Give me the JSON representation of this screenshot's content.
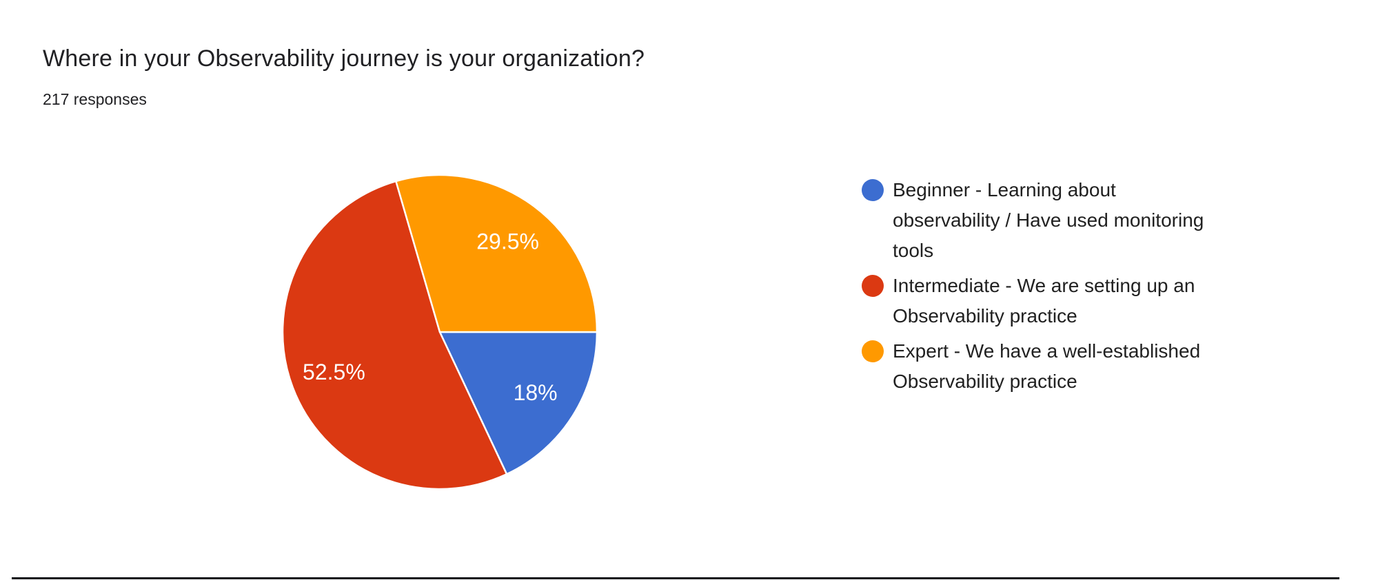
{
  "header": {
    "title": "Where in your Observability journey is your organization?",
    "responses": "217 responses"
  },
  "colors": {
    "background": "#ffffff",
    "text": "#212121",
    "pie_label_text": "#ffffff",
    "slice_separator": "#ffffff",
    "bottom_divider": "#101218"
  },
  "chart_data": {
    "type": "pie",
    "title": "Where in your Observability journey is your organization?",
    "subtitle": "217 responses",
    "total_responses": 217,
    "legend_position": "right",
    "start_angle_deg": 0,
    "direction": "clockwise",
    "slices": [
      {
        "name": "beginner",
        "label": "Beginner - Learning about observability / Have used monitoring tools",
        "value_pct": 18,
        "display": "18%",
        "color": "#3C6DD0"
      },
      {
        "name": "intermediate",
        "label": "Intermediate - We are setting up an Observability practice",
        "value_pct": 52.5,
        "display": "52.5%",
        "color": "#DB3912"
      },
      {
        "name": "expert",
        "label": "Expert - We have a well-established Observability practice",
        "value_pct": 29.5,
        "display": "29.5%",
        "color": "#FF9900"
      }
    ]
  }
}
